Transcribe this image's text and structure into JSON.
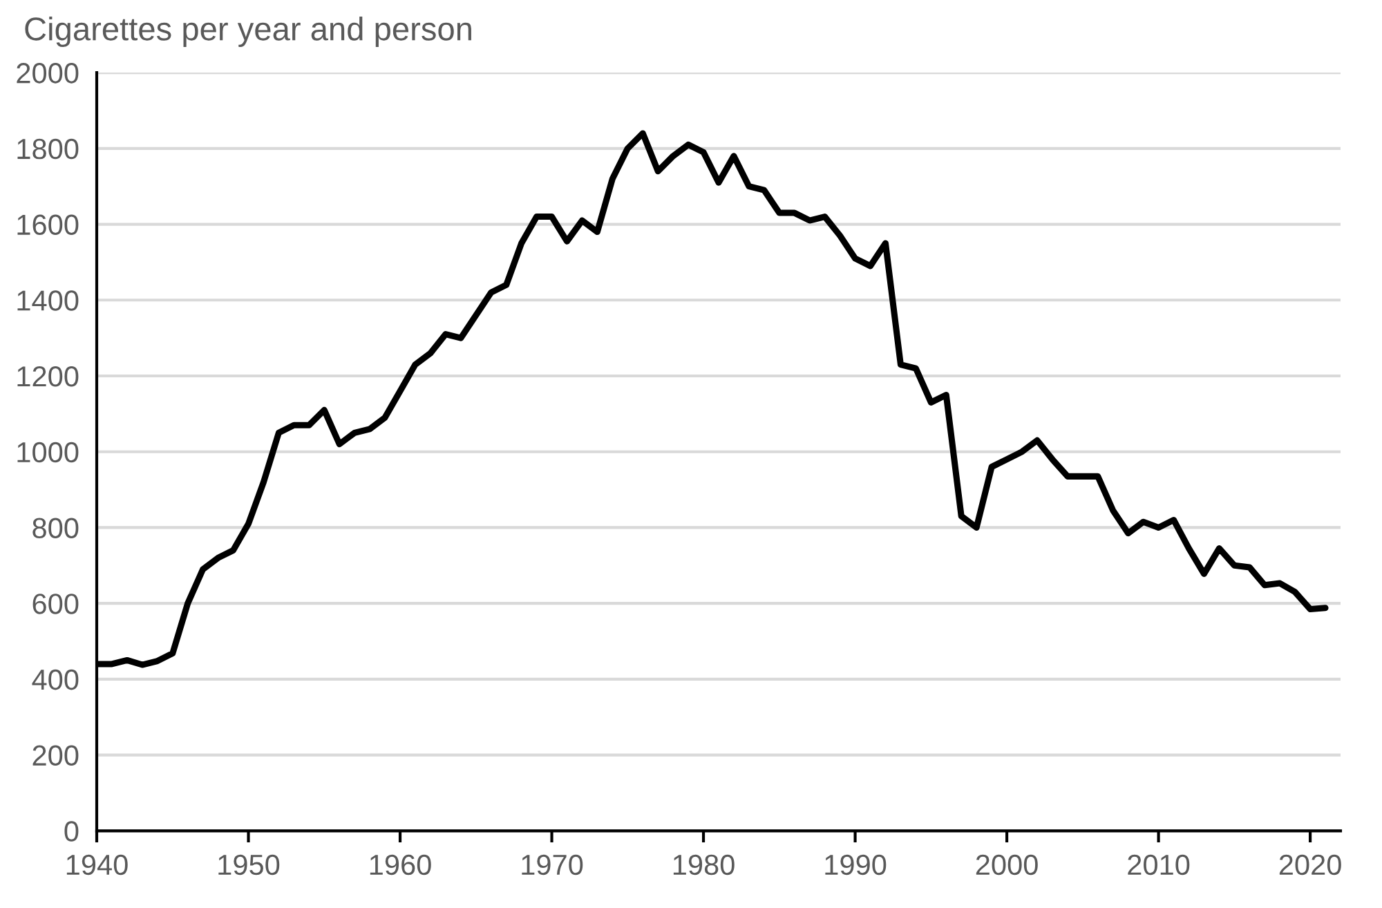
{
  "chart_data": {
    "type": "line",
    "ylabel": "Cigarettes per year and person",
    "x": [
      1940,
      1941,
      1942,
      1943,
      1944,
      1945,
      1946,
      1947,
      1948,
      1949,
      1950,
      1951,
      1952,
      1953,
      1954,
      1955,
      1956,
      1957,
      1958,
      1959,
      1960,
      1961,
      1962,
      1963,
      1964,
      1965,
      1966,
      1967,
      1968,
      1969,
      1970,
      1971,
      1972,
      1973,
      1974,
      1975,
      1976,
      1977,
      1978,
      1979,
      1980,
      1981,
      1982,
      1983,
      1984,
      1985,
      1986,
      1987,
      1988,
      1989,
      1990,
      1991,
      1992,
      1993,
      1994,
      1995,
      1996,
      1997,
      1998,
      1999,
      2000,
      2001,
      2002,
      2003,
      2004,
      2005,
      2006,
      2007,
      2008,
      2009,
      2010,
      2011,
      2012,
      2013,
      2014,
      2015,
      2016,
      2017,
      2018,
      2019,
      2020,
      2021
    ],
    "series": [
      {
        "color": "#000000",
        "values": [
          440,
          440,
          450,
          438,
          448,
          468,
          600,
          690,
          720,
          740,
          810,
          920,
          1050,
          1070,
          1070,
          1110,
          1020,
          1050,
          1060,
          1090,
          1160,
          1230,
          1260,
          1310,
          1300,
          1360,
          1420,
          1440,
          1550,
          1620,
          1620,
          1555,
          1610,
          1580,
          1720,
          1800,
          1840,
          1740,
          1780,
          1810,
          1790,
          1710,
          1780,
          1700,
          1690,
          1630,
          1630,
          1610,
          1620,
          1570,
          1510,
          1490,
          1550,
          1230,
          1220,
          1130,
          1150,
          830,
          800,
          960,
          980,
          1000,
          1030,
          980,
          935,
          935,
          935,
          845,
          785,
          815,
          800,
          820,
          745,
          678,
          745,
          700,
          695,
          648,
          653,
          630,
          585,
          588
        ]
      }
    ],
    "xlim": [
      1940,
      2022
    ],
    "xticks": [
      1940,
      1950,
      1960,
      1970,
      1980,
      1990,
      2000,
      2010,
      2020
    ],
    "ylim": [
      0,
      2000
    ],
    "yticks": [
      0,
      200,
      400,
      600,
      800,
      1000,
      1200,
      1400,
      1600,
      1800,
      2000
    ],
    "grid": "y",
    "legend": false,
    "marker": "none",
    "line_style": "solid"
  }
}
